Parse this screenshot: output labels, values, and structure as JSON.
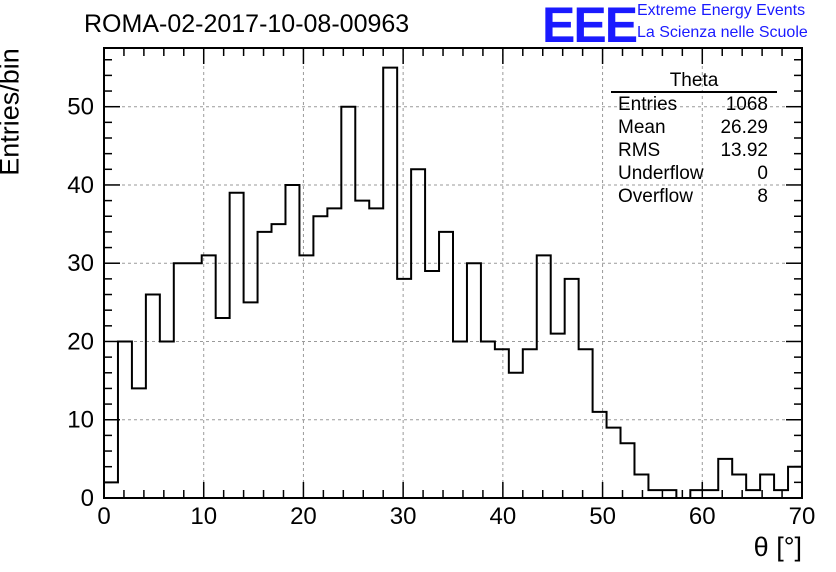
{
  "chart_data": {
    "type": "bar",
    "style": "step-histogram",
    "title": "ROMA-02-2017-10-08-00963",
    "xlabel": "θ [°]",
    "ylabel": "Entries/bin",
    "xlim": [
      0,
      70
    ],
    "ylim": [
      0,
      57.5
    ],
    "bin_width": 1.4,
    "x_ticks": [
      0,
      10,
      20,
      30,
      40,
      50,
      60,
      70
    ],
    "y_ticks": [
      0,
      10,
      20,
      30,
      40,
      50
    ],
    "grid": true,
    "values": [
      2,
      20,
      14,
      26,
      20,
      30,
      30,
      31,
      23,
      39,
      25,
      34,
      35,
      40,
      31,
      36,
      37,
      50,
      38,
      37,
      55,
      28,
      42,
      29,
      34,
      20,
      30,
      20,
      19,
      16,
      19,
      31,
      21,
      28,
      19,
      11,
      9,
      7,
      3,
      1,
      1,
      0,
      1,
      1,
      5,
      3,
      1,
      3,
      1,
      4
    ],
    "stats": {
      "title": "Theta",
      "rows": [
        {
          "label": "Entries",
          "value": "1068"
        },
        {
          "label": "Mean",
          "value": "26.29"
        },
        {
          "label": "RMS",
          "value": "13.92"
        },
        {
          "label": "Underflow",
          "value": "0"
        },
        {
          "label": "Overflow",
          "value": "8"
        }
      ]
    }
  },
  "logo": {
    "mark": "EEE",
    "line1": "Extreme Energy Events",
    "line2": "La Scienza nelle Scuole",
    "color": "#1a1aff"
  }
}
